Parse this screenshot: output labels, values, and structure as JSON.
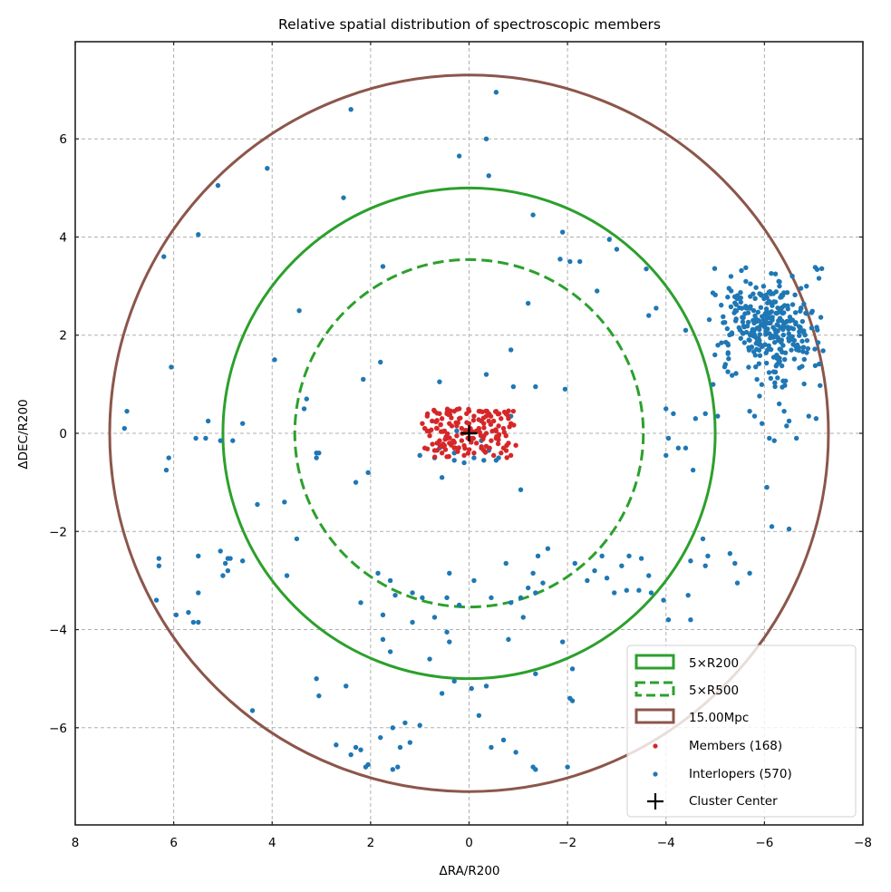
{
  "chart_data": {
    "type": "scatter",
    "title": "Relative spatial distribution of spectroscopic members",
    "xlabel": "ΔRA/R200",
    "ylabel": "ΔDEC/R200",
    "xlim": [
      8,
      -8
    ],
    "ylim": [
      -7.98,
      7.98
    ],
    "x_inverted": true,
    "grid": true,
    "grid_style": "dashed",
    "xticks": [
      8,
      6,
      4,
      2,
      0,
      -2,
      -4,
      -6,
      -8
    ],
    "xtick_labels": [
      "8",
      "6",
      "4",
      "2",
      "0",
      "−2",
      "−4",
      "−6",
      "−8"
    ],
    "yticks": [
      6,
      4,
      2,
      0,
      -2,
      -4,
      -6
    ],
    "ytick_labels": [
      "6",
      "4",
      "2",
      "0",
      "−2",
      "−4",
      "−6"
    ],
    "legend_position": "lower-right",
    "colors": {
      "r200": "#2ca02c",
      "r500": "#2ca02c",
      "mpc": "#8c564b",
      "members": "#d62728",
      "interlopers": "#1f77b4",
      "center": "#000000"
    },
    "circles": [
      {
        "name": "5×R200",
        "radius": 5.0,
        "style": "solid",
        "color": "#2ca02c"
      },
      {
        "name": "5×R500",
        "radius": 3.54,
        "style": "dashed",
        "color": "#2ca02c"
      },
      {
        "name": "15.00Mpc",
        "radius": 7.3,
        "style": "solid",
        "color": "#8c564b"
      }
    ],
    "center": {
      "label": "Cluster Center",
      "x": 0,
      "y": 0
    },
    "legend": [
      {
        "label": "5×R200",
        "kind": "patch-solid",
        "color": "#2ca02c"
      },
      {
        "label": "5×R500",
        "kind": "patch-dashed",
        "color": "#2ca02c"
      },
      {
        "label": "15.00Mpc",
        "kind": "patch-solid",
        "color": "#8c564b"
      },
      {
        "label": "Members (168)",
        "kind": "dot",
        "color": "#d62728"
      },
      {
        "label": "Interlopers (570)",
        "kind": "dot",
        "color": "#1f77b4"
      },
      {
        "label": "Cluster Center",
        "kind": "plus",
        "color": "#000000"
      }
    ],
    "series": [
      {
        "name": "Members",
        "count": 168,
        "color": "#d62728",
        "points": [
          [
            0.95,
            0.2
          ],
          [
            0.9,
            0.1
          ],
          [
            0.85,
            0.35
          ],
          [
            0.8,
            -0.05
          ],
          [
            0.75,
            0.25
          ],
          [
            0.7,
            0.45
          ],
          [
            0.65,
            0.1
          ],
          [
            0.6,
            -0.15
          ],
          [
            0.55,
            0.3
          ],
          [
            0.5,
            0.05
          ],
          [
            0.45,
            0.4
          ],
          [
            0.4,
            -0.2
          ],
          [
            0.35,
            0.15
          ],
          [
            0.3,
            0.45
          ],
          [
            0.25,
            -0.05
          ],
          [
            0.2,
            0.3
          ],
          [
            0.15,
            0.1
          ],
          [
            0.1,
            -0.25
          ],
          [
            0.05,
            0.4
          ],
          [
            0.0,
            0.2
          ],
          [
            -0.05,
            -0.1
          ],
          [
            -0.1,
            0.35
          ],
          [
            -0.15,
            0.05
          ],
          [
            -0.2,
            0.45
          ],
          [
            -0.25,
            -0.3
          ],
          [
            -0.3,
            0.2
          ],
          [
            -0.35,
            0.0
          ],
          [
            -0.4,
            0.4
          ],
          [
            -0.45,
            -0.15
          ],
          [
            -0.5,
            0.25
          ],
          [
            -0.55,
            0.45
          ],
          [
            -0.6,
            -0.05
          ],
          [
            -0.65,
            0.3
          ],
          [
            -0.7,
            0.1
          ],
          [
            -0.75,
            0.4
          ],
          [
            -0.8,
            -0.2
          ],
          [
            -0.85,
            0.2
          ],
          [
            -0.9,
            0.45
          ],
          [
            -0.85,
            -0.45
          ],
          [
            -0.65,
            -0.4
          ],
          [
            0.9,
            -0.3
          ],
          [
            0.7,
            -0.35
          ],
          [
            0.5,
            -0.25
          ],
          [
            0.3,
            -0.3
          ],
          [
            0.1,
            -0.45
          ],
          [
            -0.1,
            -0.4
          ],
          [
            -0.3,
            -0.35
          ],
          [
            -0.5,
            -0.45
          ],
          [
            -0.7,
            -0.3
          ],
          [
            -0.55,
            -0.1
          ],
          [
            0.6,
            0.4
          ],
          [
            0.4,
            0.2
          ],
          [
            0.2,
            0.5
          ],
          [
            0.0,
            0.45
          ],
          [
            -0.2,
            0.1
          ],
          [
            -0.4,
            0.25
          ],
          [
            -0.6,
            0.15
          ],
          [
            -0.8,
            0.3
          ],
          [
            0.85,
            0.05
          ],
          [
            0.65,
            -0.2
          ],
          [
            0.45,
            -0.1
          ],
          [
            0.25,
            0.15
          ],
          [
            0.05,
            0.05
          ],
          [
            -0.15,
            -0.2
          ],
          [
            -0.35,
            0.35
          ],
          [
            -0.55,
            0.05
          ],
          [
            -0.75,
            -0.05
          ],
          [
            0.55,
            -0.4
          ],
          [
            0.15,
            -0.15
          ],
          [
            -0.25,
            0.25
          ]
        ]
      },
      {
        "name": "Interlopers",
        "count": 570,
        "color": "#1f77b4",
        "points": [
          [
            -0.55,
            6.95
          ],
          [
            -0.35,
            6.0
          ],
          [
            -0.4,
            5.25
          ],
          [
            0.2,
            5.65
          ],
          [
            2.4,
            6.6
          ],
          [
            4.1,
            5.4
          ],
          [
            5.1,
            5.05
          ],
          [
            6.2,
            3.6
          ],
          [
            5.5,
            4.05
          ],
          [
            2.55,
            4.8
          ],
          [
            1.75,
            3.4
          ],
          [
            6.05,
            1.35
          ],
          [
            3.95,
            1.5
          ],
          [
            3.45,
            2.5
          ],
          [
            2.15,
            1.1
          ],
          [
            1.8,
            1.45
          ],
          [
            -1.3,
            4.45
          ],
          [
            -1.9,
            4.1
          ],
          [
            -1.85,
            3.55
          ],
          [
            -2.05,
            3.5
          ],
          [
            -2.25,
            3.5
          ],
          [
            -2.6,
            2.9
          ],
          [
            -2.85,
            3.95
          ],
          [
            -3.0,
            3.75
          ],
          [
            -3.6,
            3.35
          ],
          [
            -3.8,
            2.55
          ],
          [
            -4.4,
            2.1
          ],
          [
            -3.65,
            2.4
          ],
          [
            -1.2,
            2.65
          ],
          [
            -1.95,
            0.9
          ],
          [
            -0.35,
            1.2
          ],
          [
            -0.85,
            1.7
          ],
          [
            -0.9,
            0.95
          ],
          [
            -1.35,
            0.95
          ],
          [
            0.6,
            1.05
          ],
          [
            3.3,
            0.7
          ],
          [
            3.35,
            0.5
          ],
          [
            5.3,
            0.25
          ],
          [
            5.05,
            -0.15
          ],
          [
            4.6,
            0.2
          ],
          [
            6.95,
            0.45
          ],
          [
            7.0,
            0.1
          ],
          [
            6.1,
            -0.5
          ],
          [
            6.15,
            -0.75
          ],
          [
            5.55,
            -0.1
          ],
          [
            3.05,
            -0.4
          ],
          [
            3.1,
            -0.5
          ],
          [
            2.05,
            -0.8
          ],
          [
            0.7,
            -0.5
          ],
          [
            1.0,
            -0.45
          ],
          [
            0.55,
            -0.9
          ],
          [
            -1.05,
            -1.15
          ],
          [
            -0.6,
            -0.5
          ],
          [
            -0.3,
            -0.55
          ],
          [
            0.1,
            -0.6
          ],
          [
            0.3,
            -0.4
          ],
          [
            -4.0,
            0.5
          ],
          [
            -4.15,
            0.4
          ],
          [
            -4.05,
            -0.1
          ],
          [
            -4.25,
            -0.3
          ],
          [
            -4.4,
            -0.3
          ],
          [
            -4.6,
            0.3
          ],
          [
            -4.8,
            0.4
          ],
          [
            -5.05,
            0.35
          ],
          [
            -4.55,
            -0.75
          ],
          [
            -4.0,
            -0.45
          ],
          [
            -5.7,
            0.45
          ],
          [
            -5.8,
            0.35
          ],
          [
            -5.95,
            0.2
          ],
          [
            -6.1,
            -0.1
          ],
          [
            -6.2,
            -0.15
          ],
          [
            -6.3,
            0.6
          ],
          [
            -6.4,
            0.45
          ],
          [
            -6.5,
            0.25
          ],
          [
            -6.45,
            0.15
          ],
          [
            -6.65,
            -0.1
          ],
          [
            -6.9,
            0.35
          ],
          [
            -7.05,
            0.3
          ],
          [
            -6.05,
            -1.1
          ],
          [
            -6.15,
            -1.9
          ],
          [
            -6.5,
            -1.95
          ],
          [
            -5.3,
            -2.45
          ],
          [
            -4.75,
            -2.15
          ],
          [
            -4.85,
            -2.5
          ],
          [
            -4.5,
            -2.6
          ],
          [
            -4.8,
            -2.7
          ],
          [
            -5.4,
            -2.65
          ],
          [
            -5.7,
            -2.85
          ],
          [
            -5.45,
            -3.05
          ],
          [
            -4.45,
            -3.3
          ],
          [
            -4.5,
            -3.8
          ],
          [
            -3.95,
            -3.4
          ],
          [
            -4.05,
            -3.8
          ],
          [
            -3.1,
            -2.7
          ],
          [
            -3.25,
            -2.5
          ],
          [
            -3.5,
            -2.55
          ],
          [
            -3.65,
            -2.9
          ],
          [
            -3.7,
            -3.25
          ],
          [
            -3.45,
            -3.2
          ],
          [
            -3.2,
            -3.2
          ],
          [
            -2.95,
            -3.25
          ],
          [
            -2.8,
            -2.95
          ],
          [
            -2.7,
            -2.5
          ],
          [
            -2.55,
            -2.8
          ],
          [
            -2.4,
            -3.0
          ],
          [
            -2.15,
            -2.65
          ],
          [
            -1.6,
            -2.35
          ],
          [
            -1.4,
            -2.5
          ],
          [
            -1.3,
            -2.85
          ],
          [
            -1.5,
            -3.05
          ],
          [
            -1.2,
            -3.15
          ],
          [
            -1.05,
            -3.35
          ],
          [
            -1.35,
            -3.25
          ],
          [
            -0.75,
            -2.65
          ],
          [
            -0.1,
            -3.0
          ],
          [
            -0.45,
            -3.35
          ],
          [
            0.4,
            -2.85
          ],
          [
            0.45,
            -3.35
          ],
          [
            1.15,
            -3.25
          ],
          [
            1.5,
            -3.3
          ],
          [
            1.6,
            -3.0
          ],
          [
            1.85,
            -2.85
          ],
          [
            0.95,
            -3.35
          ],
          [
            0.2,
            -3.5
          ],
          [
            0.45,
            -4.05
          ],
          [
            0.7,
            -3.75
          ],
          [
            1.15,
            -3.85
          ],
          [
            -0.85,
            -3.45
          ],
          [
            -1.1,
            -3.75
          ],
          [
            -1.9,
            -4.25
          ],
          [
            -2.1,
            -4.8
          ],
          [
            -1.35,
            -4.9
          ],
          [
            -2.05,
            -5.4
          ],
          [
            -2.1,
            -5.45
          ],
          [
            -0.35,
            -5.15
          ],
          [
            -0.05,
            -5.2
          ],
          [
            0.3,
            -5.05
          ],
          [
            0.55,
            -5.3
          ],
          [
            0.4,
            -4.25
          ],
          [
            0.8,
            -4.6
          ],
          [
            1.75,
            -4.2
          ],
          [
            1.6,
            -4.45
          ],
          [
            -0.8,
            -4.2
          ],
          [
            -0.2,
            -5.75
          ],
          [
            -0.45,
            -6.4
          ],
          [
            -0.7,
            -6.25
          ],
          [
            -0.95,
            -6.5
          ],
          [
            -1.3,
            -6.8
          ],
          [
            -1.35,
            -6.85
          ],
          [
            -2.0,
            -6.8
          ],
          [
            1.3,
            -5.9
          ],
          [
            1.55,
            -6.0
          ],
          [
            1.8,
            -6.2
          ],
          [
            1.55,
            -6.85
          ],
          [
            1.45,
            -6.8
          ],
          [
            1.0,
            -5.95
          ],
          [
            1.2,
            -6.3
          ],
          [
            1.4,
            -6.4
          ],
          [
            2.05,
            -6.75
          ],
          [
            2.1,
            -6.8
          ],
          [
            2.3,
            -6.4
          ],
          [
            2.2,
            -6.45
          ],
          [
            2.4,
            -6.55
          ],
          [
            2.7,
            -6.35
          ],
          [
            2.2,
            -3.45
          ],
          [
            1.75,
            -3.7
          ],
          [
            3.05,
            -5.35
          ],
          [
            3.1,
            -5.0
          ],
          [
            2.5,
            -5.15
          ],
          [
            4.4,
            -5.65
          ],
          [
            4.6,
            -2.6
          ],
          [
            4.85,
            -2.55
          ],
          [
            4.95,
            -2.65
          ],
          [
            5.05,
            -2.4
          ],
          [
            4.9,
            -2.8
          ],
          [
            4.9,
            -2.55
          ],
          [
            5.5,
            -2.5
          ],
          [
            6.3,
            -2.55
          ],
          [
            6.3,
            -2.7
          ],
          [
            5.5,
            -3.25
          ],
          [
            5.6,
            -3.85
          ],
          [
            5.5,
            -3.85
          ],
          [
            5.7,
            -3.65
          ],
          [
            5.95,
            -3.7
          ],
          [
            6.35,
            -3.4
          ],
          [
            5.0,
            -2.9
          ],
          [
            4.3,
            -1.45
          ],
          [
            3.75,
            -1.4
          ],
          [
            3.5,
            -2.15
          ],
          [
            3.7,
            -2.9
          ],
          [
            5.35,
            -0.1
          ],
          [
            4.8,
            -0.15
          ],
          [
            2.3,
            -1.0
          ],
          [
            3.1,
            -0.4
          ]
        ],
        "clusters": [
          {
            "note": "dense background group",
            "center": [
              -6.1,
              2.1
            ],
            "approx_extent": [
              [
                -4.9,
                -7.2
              ],
              [
                0.9,
                3.4
              ]
            ]
          }
        ]
      }
    ]
  }
}
